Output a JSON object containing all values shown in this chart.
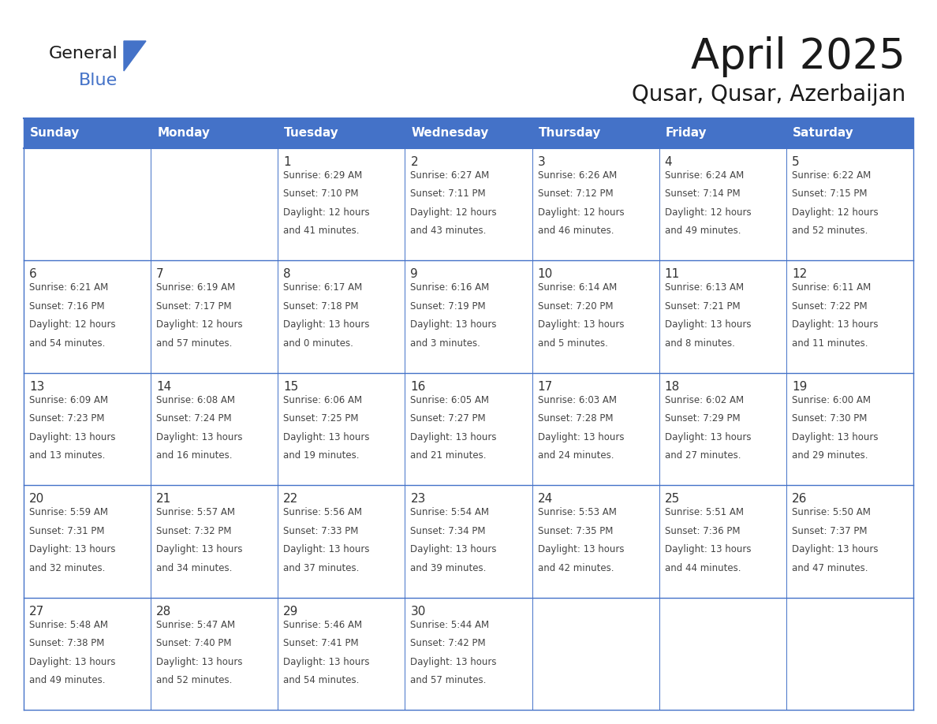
{
  "title": "April 2025",
  "subtitle": "Qusar, Qusar, Azerbaijan",
  "header_bg": "#4472c8",
  "header_text_color": "#ffffff",
  "cell_bg": "#ffffff",
  "day_names": [
    "Sunday",
    "Monday",
    "Tuesday",
    "Wednesday",
    "Thursday",
    "Friday",
    "Saturday"
  ],
  "grid_color": "#4472c8",
  "text_color": "#444444",
  "day_num_color": "#333333",
  "calendar": [
    [
      {
        "day": 0,
        "sunrise": "",
        "sunset": "",
        "daylight": ""
      },
      {
        "day": 0,
        "sunrise": "",
        "sunset": "",
        "daylight": ""
      },
      {
        "day": 1,
        "sunrise": "6:29 AM",
        "sunset": "7:10 PM",
        "daylight": "12 hours and 41 minutes."
      },
      {
        "day": 2,
        "sunrise": "6:27 AM",
        "sunset": "7:11 PM",
        "daylight": "12 hours and 43 minutes."
      },
      {
        "day": 3,
        "sunrise": "6:26 AM",
        "sunset": "7:12 PM",
        "daylight": "12 hours and 46 minutes."
      },
      {
        "day": 4,
        "sunrise": "6:24 AM",
        "sunset": "7:14 PM",
        "daylight": "12 hours and 49 minutes."
      },
      {
        "day": 5,
        "sunrise": "6:22 AM",
        "sunset": "7:15 PM",
        "daylight": "12 hours and 52 minutes."
      }
    ],
    [
      {
        "day": 6,
        "sunrise": "6:21 AM",
        "sunset": "7:16 PM",
        "daylight": "12 hours and 54 minutes."
      },
      {
        "day": 7,
        "sunrise": "6:19 AM",
        "sunset": "7:17 PM",
        "daylight": "12 hours and 57 minutes."
      },
      {
        "day": 8,
        "sunrise": "6:17 AM",
        "sunset": "7:18 PM",
        "daylight": "13 hours and 0 minutes."
      },
      {
        "day": 9,
        "sunrise": "6:16 AM",
        "sunset": "7:19 PM",
        "daylight": "13 hours and 3 minutes."
      },
      {
        "day": 10,
        "sunrise": "6:14 AM",
        "sunset": "7:20 PM",
        "daylight": "13 hours and 5 minutes."
      },
      {
        "day": 11,
        "sunrise": "6:13 AM",
        "sunset": "7:21 PM",
        "daylight": "13 hours and 8 minutes."
      },
      {
        "day": 12,
        "sunrise": "6:11 AM",
        "sunset": "7:22 PM",
        "daylight": "13 hours and 11 minutes."
      }
    ],
    [
      {
        "day": 13,
        "sunrise": "6:09 AM",
        "sunset": "7:23 PM",
        "daylight": "13 hours and 13 minutes."
      },
      {
        "day": 14,
        "sunrise": "6:08 AM",
        "sunset": "7:24 PM",
        "daylight": "13 hours and 16 minutes."
      },
      {
        "day": 15,
        "sunrise": "6:06 AM",
        "sunset": "7:25 PM",
        "daylight": "13 hours and 19 minutes."
      },
      {
        "day": 16,
        "sunrise": "6:05 AM",
        "sunset": "7:27 PM",
        "daylight": "13 hours and 21 minutes."
      },
      {
        "day": 17,
        "sunrise": "6:03 AM",
        "sunset": "7:28 PM",
        "daylight": "13 hours and 24 minutes."
      },
      {
        "day": 18,
        "sunrise": "6:02 AM",
        "sunset": "7:29 PM",
        "daylight": "13 hours and 27 minutes."
      },
      {
        "day": 19,
        "sunrise": "6:00 AM",
        "sunset": "7:30 PM",
        "daylight": "13 hours and 29 minutes."
      }
    ],
    [
      {
        "day": 20,
        "sunrise": "5:59 AM",
        "sunset": "7:31 PM",
        "daylight": "13 hours and 32 minutes."
      },
      {
        "day": 21,
        "sunrise": "5:57 AM",
        "sunset": "7:32 PM",
        "daylight": "13 hours and 34 minutes."
      },
      {
        "day": 22,
        "sunrise": "5:56 AM",
        "sunset": "7:33 PM",
        "daylight": "13 hours and 37 minutes."
      },
      {
        "day": 23,
        "sunrise": "5:54 AM",
        "sunset": "7:34 PM",
        "daylight": "13 hours and 39 minutes."
      },
      {
        "day": 24,
        "sunrise": "5:53 AM",
        "sunset": "7:35 PM",
        "daylight": "13 hours and 42 minutes."
      },
      {
        "day": 25,
        "sunrise": "5:51 AM",
        "sunset": "7:36 PM",
        "daylight": "13 hours and 44 minutes."
      },
      {
        "day": 26,
        "sunrise": "5:50 AM",
        "sunset": "7:37 PM",
        "daylight": "13 hours and 47 minutes."
      }
    ],
    [
      {
        "day": 27,
        "sunrise": "5:48 AM",
        "sunset": "7:38 PM",
        "daylight": "13 hours and 49 minutes."
      },
      {
        "day": 28,
        "sunrise": "5:47 AM",
        "sunset": "7:40 PM",
        "daylight": "13 hours and 52 minutes."
      },
      {
        "day": 29,
        "sunrise": "5:46 AM",
        "sunset": "7:41 PM",
        "daylight": "13 hours and 54 minutes."
      },
      {
        "day": 30,
        "sunrise": "5:44 AM",
        "sunset": "7:42 PM",
        "daylight": "13 hours and 57 minutes."
      },
      {
        "day": 0,
        "sunrise": "",
        "sunset": "",
        "daylight": ""
      },
      {
        "day": 0,
        "sunrise": "",
        "sunset": "",
        "daylight": ""
      },
      {
        "day": 0,
        "sunrise": "",
        "sunset": "",
        "daylight": ""
      }
    ]
  ],
  "logo_general_color": "#1a1a1a",
  "logo_blue_color": "#4472c8",
  "logo_triangle_color": "#4472c8",
  "title_fontsize": 38,
  "subtitle_fontsize": 20,
  "header_fontsize": 11,
  "day_num_fontsize": 11,
  "cell_text_fontsize": 8.5
}
